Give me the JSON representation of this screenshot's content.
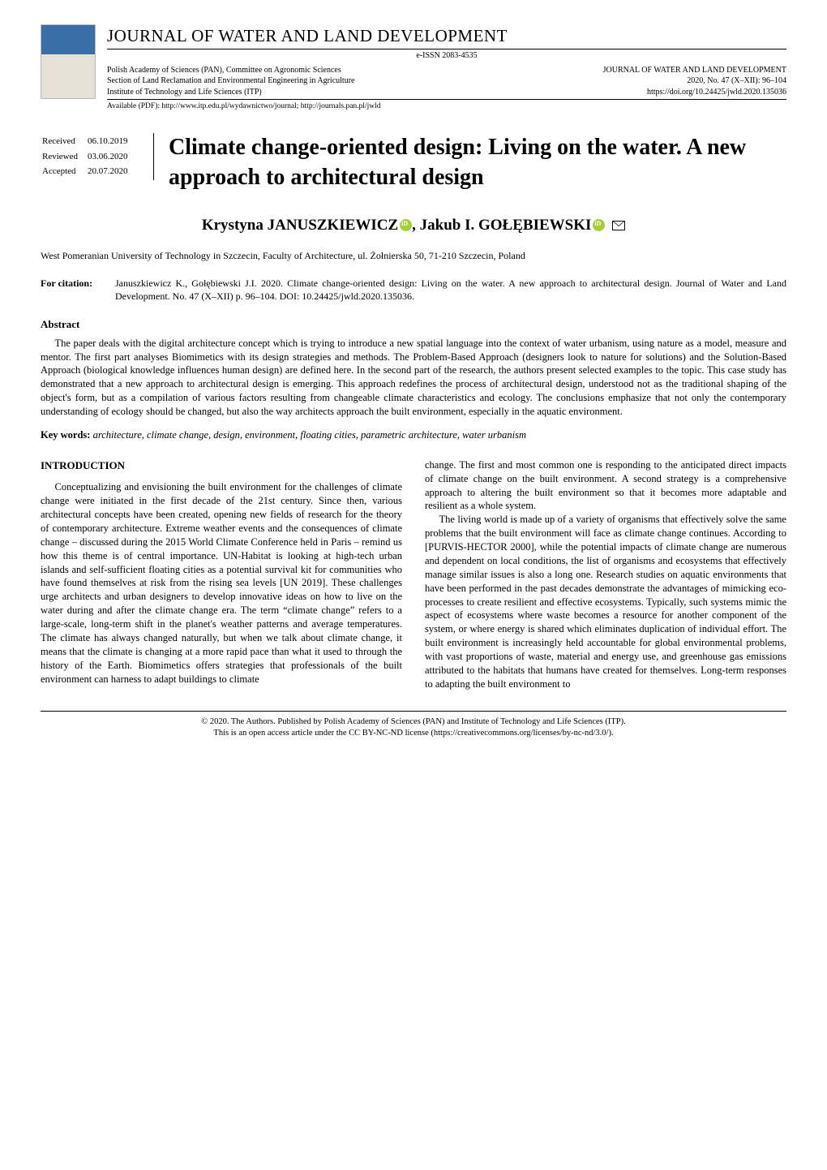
{
  "colors": {
    "text": "#000000",
    "background": "#ffffff",
    "rule": "#000000",
    "orcid_bg": "#a6ce39",
    "orcid_fg": "#ffffff",
    "thumb_top": "#3a6ea8",
    "thumb_bottom": "#e6e0d6"
  },
  "typography": {
    "body_family": "Times New Roman",
    "body_size_pt": 10,
    "journal_title_size_pt": 16,
    "paper_title_size_pt": 22,
    "authors_size_pt": 15,
    "section_heading_size_pt": 10
  },
  "header": {
    "journal_title": "JOURNAL OF WATER AND LAND DEVELOPMENT",
    "eissn": "e-ISSN 2083-4535",
    "publisher_lines": [
      "Polish Academy of Sciences (PAN), Committee on Agronomic Sciences",
      "Section of Land Reclamation and Environmental Engineering in Agriculture",
      "Institute of Technology and Life Sciences (ITP)"
    ],
    "right_lines": [
      "JOURNAL OF WATER AND LAND DEVELOPMENT",
      "2020, No. 47 (X–XII): 96–104",
      "https://doi.org/10.24425/jwld.2020.135036"
    ],
    "available": "Available (PDF): http://www.itp.edu.pl/wydawnictwo/journal; http://journals.pan.pl/jwld"
  },
  "dates": {
    "received_label": "Received",
    "received": "06.10.2019",
    "reviewed_label": "Reviewed",
    "reviewed": "03.06.2020",
    "accepted_label": "Accepted",
    "accepted": "20.07.2020"
  },
  "paper": {
    "title": "Climate change-oriented design: Living on the water. A new approach to architectural design",
    "authors_prefix_1": "Krystyna ",
    "author_1_surname": "JANUSZKIEWICZ",
    "authors_sep": ", ",
    "authors_prefix_2": "Jakub I. ",
    "author_2_surname": "GOŁĘBIEWSKI",
    "affiliation": "West Pomeranian University of Technology in Szczecin, Faculty of Architecture, ul. Żołnierska 50, 71-210 Szczecin, Poland",
    "citation_label": "For citation:",
    "citation": "Januszkiewicz K., Gołębiewski J.I. 2020. Climate change-oriented design: Living on the water. A new approach to architectural design. Journal of Water and Land Development. No. 47 (X–XII) p. 96–104. DOI: 10.24425/jwld.2020.135036."
  },
  "abstract": {
    "heading": "Abstract",
    "text": "The paper deals with the digital architecture concept which is trying to introduce a new spatial language into the context of water urbanism, using nature as a model, measure and mentor. The first part analyses Biomimetics with its design strategies and methods. The Problem-Based Approach (designers look to nature for solutions) and the Solution-Based Approach (biological knowledge influences human design) are defined here. In the second part of the research, the authors present selected examples to the topic. This case study has demonstrated that a new approach to architectural design is emerging. This approach redefines the process of architectural design, understood not as the traditional shaping of the object's form, but as a compilation of various factors resulting from changeable climate characteristics and ecology. The conclusions emphasize that not only the contemporary understanding of ecology should be changed, but also the way architects approach the built environment, especially in the aquatic environment."
  },
  "keywords": {
    "label": "Key words:",
    "text": "architecture, climate change, design, environment, floating cities, parametric architecture, water urbanism"
  },
  "body": {
    "intro_heading": "INTRODUCTION",
    "col1_p1": "Conceptualizing and envisioning the built environment for the challenges of climate change were initiated in the first decade of the 21st century. Since then, various architectural concepts have been created, opening new fields of research for the theory of contemporary architecture. Extreme weather events and the consequences of climate change – discussed during the 2015 World Climate Conference held in Paris – remind us how this theme is of central importance. UN-Habitat is looking at high-tech urban islands and self-sufficient floating cities as a potential survival kit for communities who have found themselves at risk from the rising sea levels [UN 2019]. These challenges urge architects and urban designers to develop innovative ideas on how to live on the water during and after the climate change era. The term “climate change” refers to a large-scale, long-term shift in the planet's weather patterns and average temperatures. The climate has always changed naturally, but when we talk about climate change, it means that the climate is changing at a more rapid pace than what it used to through the history of the Earth. Biomimetics offers strategies that professionals of the built environment can harness to adapt buildings to climate",
    "col2_p1": "change. The first and most common one is responding to the anticipated direct impacts of climate change on the built environment. A second strategy is a comprehensive approach to altering the built environment so that it becomes more adaptable and resilient as a whole system.",
    "col2_p2": "The living world is made up of a variety of organisms that effectively solve the same problems that the built environment will face as climate change continues. According to [PURVIS-HECTOR 2000], while the potential impacts of climate change are numerous and dependent on local conditions, the list of organisms and ecosystems that effectively manage similar issues is also a long one. Research studies on aquatic environments that have been performed in the past decades demonstrate the advantages of mimicking eco-processes to create resilient and effective ecosystems. Typically, such systems mimic the aspect of ecosystems where waste becomes a resource for another component of the system, or where energy is shared which eliminates duplication of individual effort. The built environment is increasingly held accountable for global environmental problems, with vast proportions of waste, material and energy use, and greenhouse gas emissions attributed to the habitats that humans have created for themselves. Long-term responses to adapting the built environment to"
  },
  "footer": {
    "line1": "© 2020. The Authors. Published by Polish Academy of Sciences (PAN) and Institute of Technology and Life Sciences (ITP).",
    "line2": "This is an open access article under the CC BY-NC-ND license (https://creativecommons.org/licenses/by-nc-nd/3.0/)."
  }
}
